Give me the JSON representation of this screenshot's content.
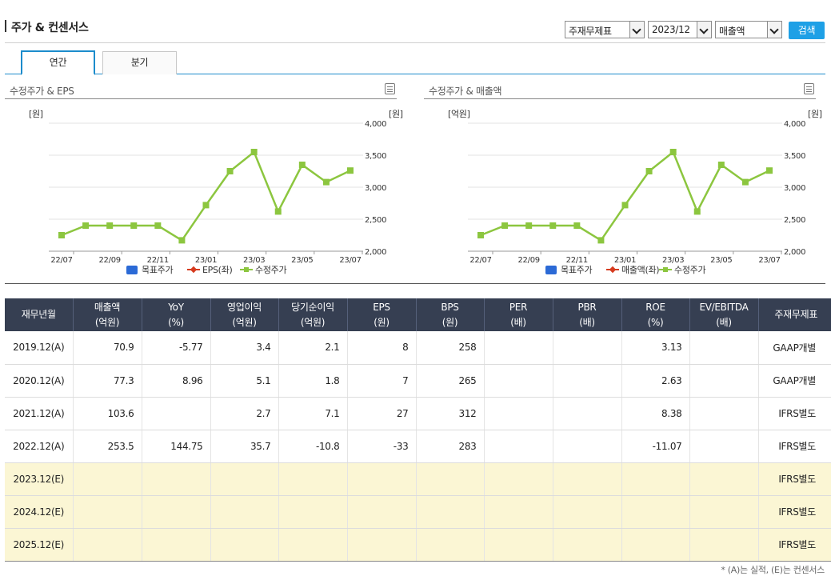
{
  "header": {
    "title": "주가 & 컨센서스",
    "select_statement": "주재무제표",
    "select_period": "2023/12",
    "select_metric": "매출액",
    "search_label": "검색"
  },
  "tabs": [
    {
      "label": "연간",
      "active": true
    },
    {
      "label": "분기",
      "active": false
    }
  ],
  "colors": {
    "accent": "#1ea0e6",
    "table_header": "#363f52",
    "estimate_row": "#fbf6d4",
    "price_line": "#8cc63f",
    "target_price": "#2b6ad6",
    "eps_line": "#d63b1f"
  },
  "chart_data": [
    {
      "type": "line",
      "title": "수정주가 & EPS",
      "left_axis_unit": "[원]",
      "right_axis_unit": "[원]",
      "categories": [
        "22/07",
        "22/08",
        "22/09",
        "22/10",
        "22/11",
        "22/12",
        "23/01",
        "23/02",
        "23/03",
        "23/04",
        "23/05",
        "23/06",
        "23/07"
      ],
      "tick_labels": [
        "22/07",
        "22/09",
        "22/11",
        "23/01",
        "23/03",
        "23/05",
        "23/07"
      ],
      "right_ticks": [
        "2,000",
        "2,500",
        "3,000",
        "3,500",
        "4,000"
      ],
      "ylim_right": [
        2000,
        4000
      ],
      "grid": true,
      "legend_position": "bottom",
      "legend": [
        {
          "name": "목표주가",
          "marker": "square",
          "color": "#2b6ad6"
        },
        {
          "name": "EPS(좌)",
          "marker": "diamond-line",
          "color": "#d63b1f"
        },
        {
          "name": "수정주가",
          "marker": "square-line",
          "color": "#8cc63f"
        }
      ],
      "series": [
        {
          "name": "수정주가",
          "axis": "right",
          "values": [
            2250,
            2400,
            2400,
            2400,
            2400,
            2170,
            2720,
            3250,
            3550,
            2620,
            3350,
            3080,
            3260
          ]
        }
      ]
    },
    {
      "type": "line",
      "title": "수정주가 & 매출액",
      "left_axis_unit": "[억원]",
      "right_axis_unit": "[원]",
      "categories": [
        "22/07",
        "22/08",
        "22/09",
        "22/10",
        "22/11",
        "22/12",
        "23/01",
        "23/02",
        "23/03",
        "23/04",
        "23/05",
        "23/06",
        "23/07"
      ],
      "tick_labels": [
        "22/07",
        "22/09",
        "22/11",
        "23/01",
        "23/03",
        "23/05",
        "23/07"
      ],
      "right_ticks": [
        "2,000",
        "2,500",
        "3,000",
        "3,500",
        "4,000"
      ],
      "ylim_right": [
        2000,
        4000
      ],
      "grid": true,
      "legend_position": "bottom",
      "legend": [
        {
          "name": "목표주가",
          "marker": "square",
          "color": "#2b6ad6"
        },
        {
          "name": "매출액(좌)",
          "marker": "diamond-line",
          "color": "#d63b1f"
        },
        {
          "name": "수정주가",
          "marker": "square-line",
          "color": "#8cc63f"
        }
      ],
      "series": [
        {
          "name": "수정주가",
          "axis": "right",
          "values": [
            2250,
            2400,
            2400,
            2400,
            2400,
            2170,
            2720,
            3250,
            3550,
            2620,
            3350,
            3080,
            3260
          ]
        }
      ]
    }
  ],
  "table": {
    "headers": [
      {
        "l1": "재무년월",
        "l2": ""
      },
      {
        "l1": "매출액",
        "l2": "(억원)"
      },
      {
        "l1": "YoY",
        "l2": "(%)"
      },
      {
        "l1": "영업이익",
        "l2": "(억원)"
      },
      {
        "l1": "당기순이익",
        "l2": "(억원)"
      },
      {
        "l1": "EPS",
        "l2": "(원)"
      },
      {
        "l1": "BPS",
        "l2": "(원)"
      },
      {
        "l1": "PER",
        "l2": "(배)"
      },
      {
        "l1": "PBR",
        "l2": "(배)"
      },
      {
        "l1": "ROE",
        "l2": "(%)"
      },
      {
        "l1": "EV/EBITDA",
        "l2": "(배)"
      },
      {
        "l1": "주재무제표",
        "l2": ""
      }
    ],
    "rows": [
      {
        "estimate": false,
        "cells": [
          "2019.12(A)",
          "70.9",
          "-5.77",
          "3.4",
          "2.1",
          "8",
          "258",
          "",
          "",
          "3.13",
          "",
          "GAAP개별"
        ]
      },
      {
        "estimate": false,
        "cells": [
          "2020.12(A)",
          "77.3",
          "8.96",
          "5.1",
          "1.8",
          "7",
          "265",
          "",
          "",
          "2.63",
          "",
          "GAAP개별"
        ]
      },
      {
        "estimate": false,
        "cells": [
          "2021.12(A)",
          "103.6",
          "",
          "2.7",
          "7.1",
          "27",
          "312",
          "",
          "",
          "8.38",
          "",
          "IFRS별도"
        ]
      },
      {
        "estimate": false,
        "cells": [
          "2022.12(A)",
          "253.5",
          "144.75",
          "35.7",
          "-10.8",
          "-33",
          "283",
          "",
          "",
          "-11.07",
          "",
          "IFRS별도"
        ]
      },
      {
        "estimate": true,
        "cells": [
          "2023.12(E)",
          "",
          "",
          "",
          "",
          "",
          "",
          "",
          "",
          "",
          "",
          "IFRS별도"
        ]
      },
      {
        "estimate": true,
        "cells": [
          "2024.12(E)",
          "",
          "",
          "",
          "",
          "",
          "",
          "",
          "",
          "",
          "",
          "IFRS별도"
        ]
      },
      {
        "estimate": true,
        "cells": [
          "2025.12(E)",
          "",
          "",
          "",
          "",
          "",
          "",
          "",
          "",
          "",
          "",
          "IFRS별도"
        ]
      }
    ]
  },
  "footnote": "* (A)는 실적, (E)는 컨센서스"
}
